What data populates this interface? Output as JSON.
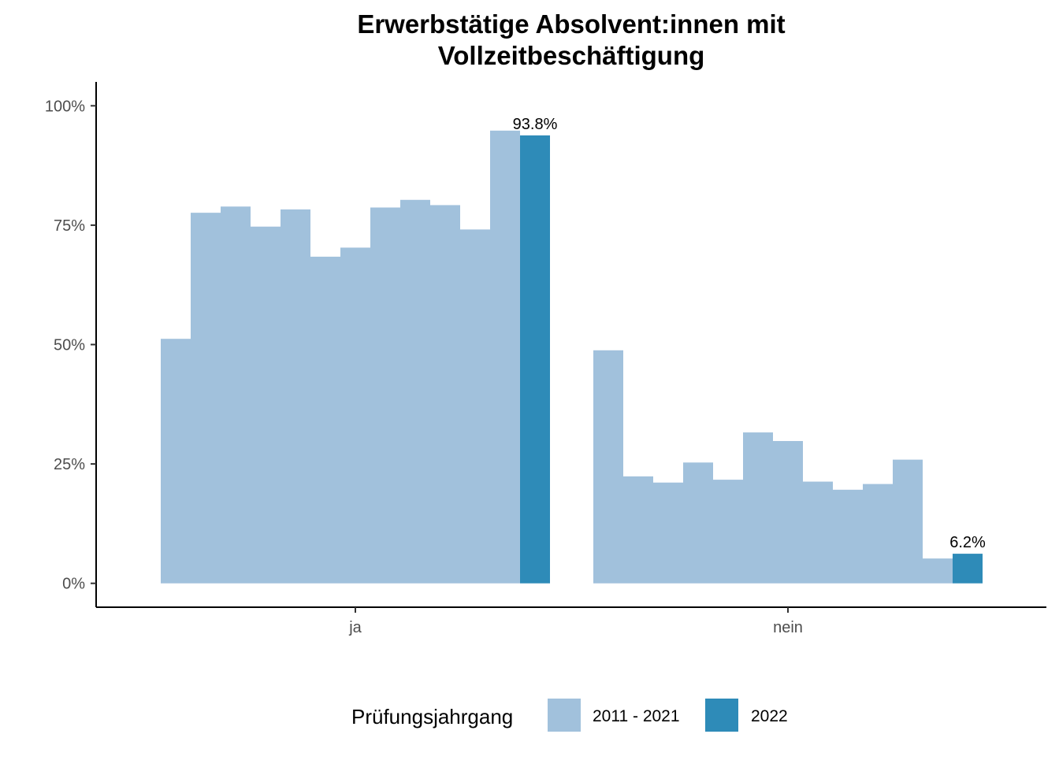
{
  "chart_data": {
    "type": "bar",
    "title_lines": [
      "Erwerbstätige Absolvent:innen mit",
      "Vollzeitbeschäftigung"
    ],
    "categories": [
      "ja",
      "nein"
    ],
    "series": [
      {
        "name": "2011 - 2021",
        "color": "#a1c1dc",
        "values": {
          "ja": [
            51.2,
            77.6,
            78.9,
            74.7,
            78.3,
            68.4,
            70.3,
            78.7,
            80.3,
            79.2,
            74.1,
            94.8
          ],
          "nein": [
            48.8,
            22.4,
            21.1,
            25.3,
            21.7,
            31.6,
            29.8,
            21.3,
            19.6,
            20.8,
            25.9,
            5.2
          ]
        }
      },
      {
        "name": "2022",
        "color": "#2e8bb8",
        "values": {
          "ja": [
            93.8
          ],
          "nein": [
            6.2
          ]
        },
        "labels": {
          "ja": "93.8%",
          "nein": "6.2%"
        }
      }
    ],
    "y_ticks": [
      "0%",
      "25%",
      "50%",
      "75%",
      "100%"
    ],
    "y_tick_values": [
      0,
      25,
      50,
      75,
      100
    ],
    "ylim": [
      -5,
      105
    ],
    "legend": {
      "title": "Prüfungsjahrgang",
      "position": "bottom"
    },
    "grid": false
  }
}
